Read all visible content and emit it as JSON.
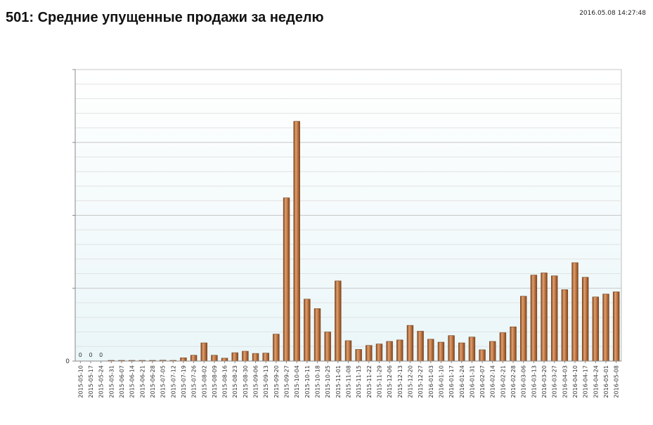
{
  "header": {
    "title": "501: Средние упущенные продажи за неделю",
    "timestamp": "2016.05.08 14:27:48"
  },
  "colors": {
    "bar_fill": "#b86e3a",
    "bar_highlight": "#e0a070",
    "bar_shadow": "#7a4420",
    "plot_bg_top": "#ffffff",
    "plot_bg_bottom": "#eaf6f8",
    "grid_major": "#c8c8c8",
    "grid_minor": "#e2e2e2"
  },
  "chart_data": {
    "type": "bar",
    "title": "501: Средние упущенные продажи за неделю",
    "xlabel": "",
    "ylabel": "",
    "ylim": [
      0,
      4000000
    ],
    "ytick_values": [
      0,
      1000000,
      2000000,
      3000000,
      4000000
    ],
    "yticks_visible": [
      "0"
    ],
    "grid": true,
    "legend": "none",
    "categories": [
      "2015-05-10",
      "2015-05-17",
      "2015-05-24",
      "2015-05-31",
      "2015-06-07",
      "2015-06-14",
      "2015-06-21",
      "2015-06-28",
      "2015-07-05",
      "2015-07-12",
      "2015-07-19",
      "2015-07-26",
      "2015-08-02",
      "2015-08-09",
      "2015-08-16",
      "2015-08-23",
      "2015-08-30",
      "2015-09-06",
      "2015-09-13",
      "2015-09-20",
      "2015-09-27",
      "2015-10-04",
      "2015-10-11",
      "2015-10-18",
      "2015-10-25",
      "2015-11-01",
      "2015-11-08",
      "2015-11-15",
      "2015-11-22",
      "2015-11-29",
      "2015-12-06",
      "2015-12-13",
      "2015-12-20",
      "2015-12-27",
      "2016-01-03",
      "2016-01-10",
      "2016-01-17",
      "2016-01-24",
      "2016-01-31",
      "2016-02-07",
      "2016-02-14",
      "2016-02-21",
      "2016-02-28",
      "2016-03-06",
      "2016-03-13",
      "2016-03-20",
      "2016-03-27",
      "2016-04-03",
      "2016-04-10",
      "2016-04-17",
      "2016-04-24",
      "2016-05-01",
      "2016-05-08"
    ],
    "values": [
      0,
      0,
      0,
      3000,
      3000,
      3000,
      4000,
      5000,
      12000,
      8000,
      45000,
      80000,
      250000,
      80000,
      40000,
      115000,
      135000,
      105000,
      110000,
      370000,
      2240000,
      3290000,
      850000,
      720000,
      400000,
      1100000,
      280000,
      160000,
      215000,
      235000,
      270000,
      290000,
      490000,
      410000,
      300000,
      260000,
      350000,
      250000,
      330000,
      155000,
      270000,
      390000,
      470000,
      890000,
      1180000,
      1210000,
      1170000,
      980000,
      1350000,
      1150000,
      880000,
      920000,
      950000
    ],
    "zero_labels": [
      "0",
      "0",
      "0"
    ]
  }
}
